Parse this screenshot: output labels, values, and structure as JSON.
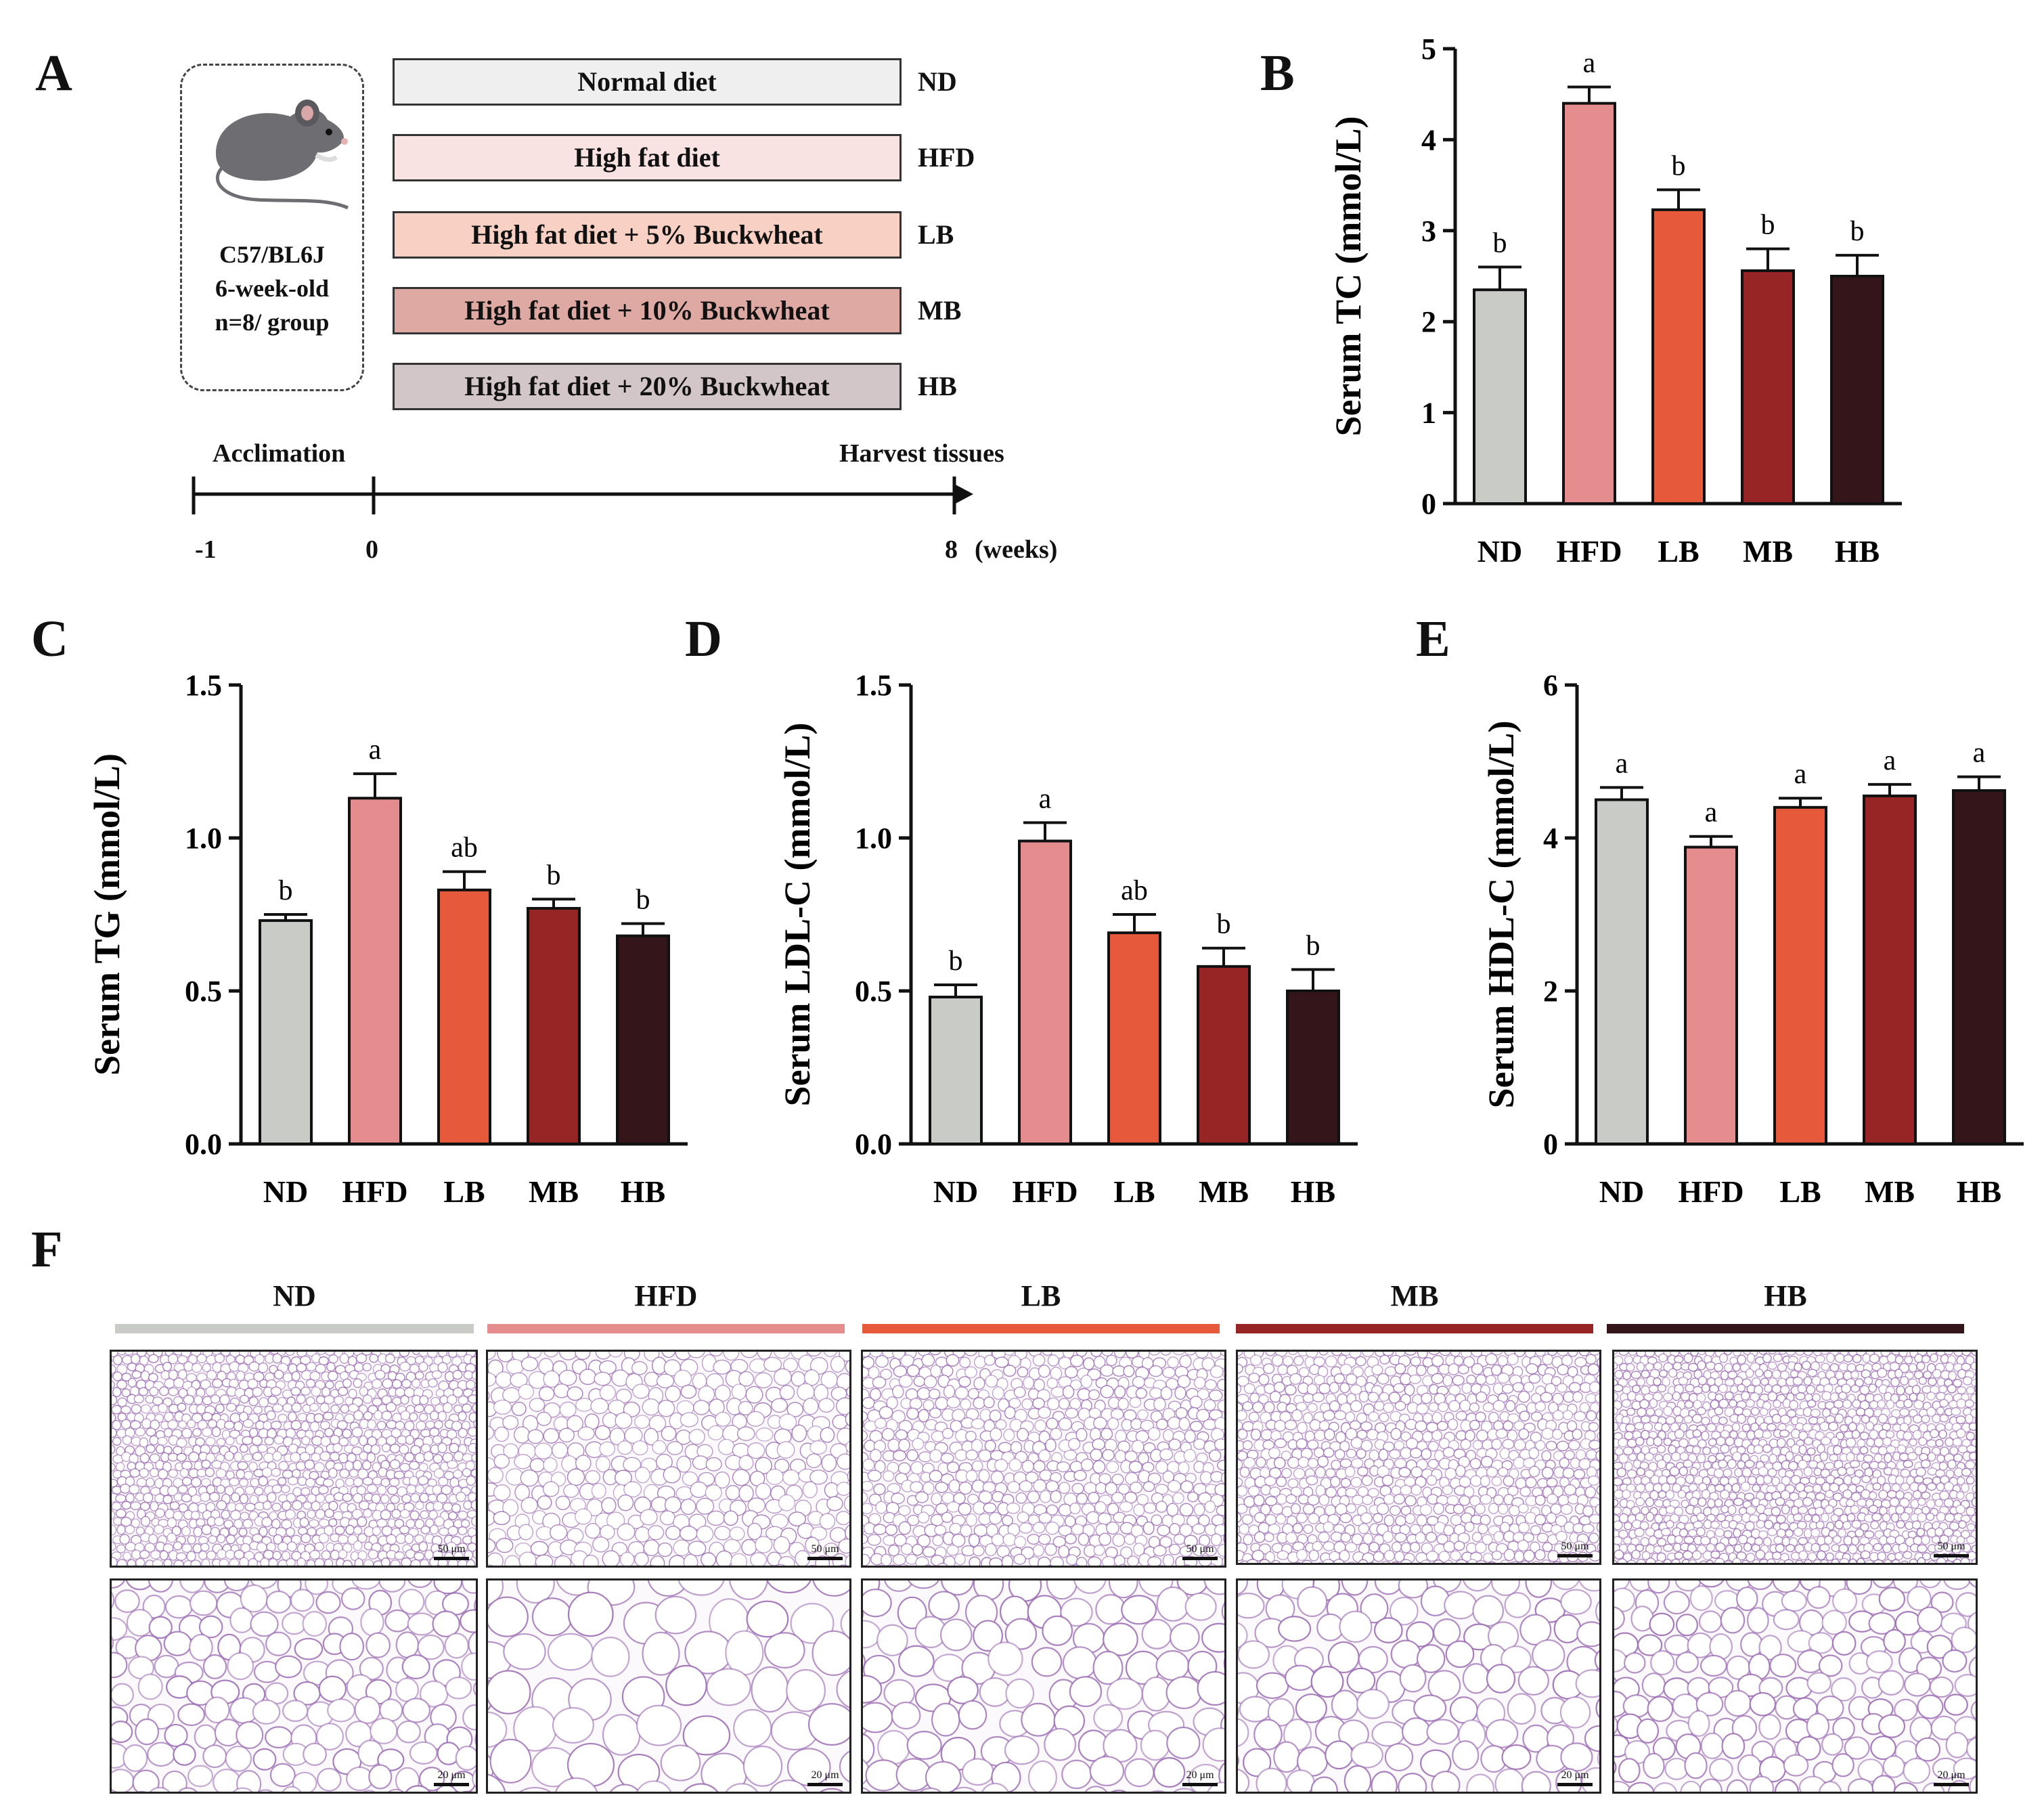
{
  "panel_labels": {
    "a": "A",
    "b": "B",
    "c": "C",
    "d": "D",
    "e": "E",
    "f": "F"
  },
  "design": {
    "mouse": {
      "strain": "C57/BL6J",
      "age": "6-week-old",
      "n": "n=8/ group"
    },
    "diets": [
      {
        "label": "Normal diet",
        "group": "ND",
        "color": "#efefef"
      },
      {
        "label": "High fat diet",
        "group": "HFD",
        "color": "#f9e2e2"
      },
      {
        "label": "High fat diet + 5% Buckwheat",
        "group": "LB",
        "color": "#f8d1c4"
      },
      {
        "label": "High fat diet + 10% Buckwheat",
        "group": "MB",
        "color": "#dfa9a3"
      },
      {
        "label": "High fat diet + 20% Buckwheat",
        "group": "HB",
        "color": "#d3c6c8"
      }
    ],
    "timeline": {
      "start_label": "Acclimation",
      "end_label": "Harvest tissues",
      "ticks": [
        "-1",
        "0",
        "8"
      ],
      "unit": "(weeks)"
    }
  },
  "colors": {
    "ND": "#c9cbc7",
    "HFD": "#e58d8e",
    "LB": "#e65a3b",
    "MB": "#972526",
    "HB": "#33151a",
    "tissue_membrane": "#9b6bb3"
  },
  "chart_data": [
    {
      "type": "bar",
      "panel": "B",
      "categories": [
        "ND",
        "HFD",
        "LB",
        "MB",
        "HB"
      ],
      "values": [
        2.35,
        4.4,
        3.23,
        2.56,
        2.5
      ],
      "errors": [
        0.25,
        0.18,
        0.22,
        0.24,
        0.23
      ],
      "significance": [
        "b",
        "a",
        "b",
        "b",
        "b"
      ],
      "ylabel": "Serum TC (mmol/L)",
      "ylim": [
        0,
        5
      ],
      "yticks": [
        "0",
        "1",
        "2",
        "3",
        "4",
        "5"
      ]
    },
    {
      "type": "bar",
      "panel": "C",
      "categories": [
        "ND",
        "HFD",
        "LB",
        "MB",
        "HB"
      ],
      "values": [
        0.73,
        1.13,
        0.83,
        0.77,
        0.68
      ],
      "errors": [
        0.02,
        0.08,
        0.06,
        0.03,
        0.04
      ],
      "significance": [
        "b",
        "a",
        "ab",
        "b",
        "b"
      ],
      "ylabel": "Serum TG (mmol/L)",
      "ylim": [
        0,
        1.5
      ],
      "yticks": [
        "0.0",
        "0.5",
        "1.0",
        "1.5"
      ]
    },
    {
      "type": "bar",
      "panel": "D",
      "categories": [
        "ND",
        "HFD",
        "LB",
        "MB",
        "HB"
      ],
      "values": [
        0.48,
        0.99,
        0.69,
        0.58,
        0.5
      ],
      "errors": [
        0.04,
        0.06,
        0.06,
        0.06,
        0.07
      ],
      "significance": [
        "b",
        "a",
        "ab",
        "b",
        "b"
      ],
      "ylabel": "Serum LDL-C (mmol/L)",
      "ylim": [
        0,
        1.5
      ],
      "yticks": [
        "0.0",
        "0.5",
        "1.0",
        "1.5"
      ]
    },
    {
      "type": "bar",
      "panel": "E",
      "categories": [
        "ND",
        "HFD",
        "LB",
        "MB",
        "HB"
      ],
      "values": [
        4.5,
        3.88,
        4.4,
        4.55,
        4.62
      ],
      "errors": [
        0.16,
        0.14,
        0.12,
        0.15,
        0.18
      ],
      "significance": [
        "a",
        "a",
        "a",
        "a",
        "a"
      ],
      "ylabel": "Serum HDL-C (mmol/L)",
      "ylim": [
        0,
        6
      ],
      "yticks": [
        "0",
        "2",
        "4",
        "6"
      ]
    }
  ],
  "histology": {
    "groups": [
      "ND",
      "HFD",
      "LB",
      "MB",
      "HB"
    ],
    "scale_top": "50 μm",
    "scale_bottom": "20 μm"
  }
}
